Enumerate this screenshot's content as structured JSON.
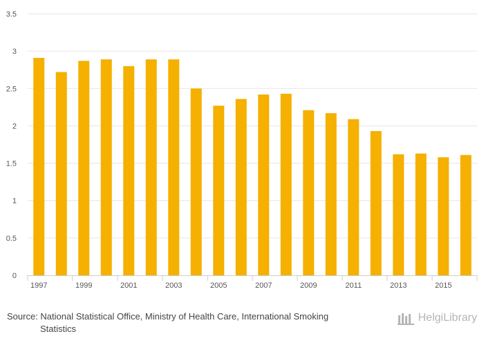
{
  "chart_data": {
    "type": "bar",
    "categories": [
      "1997",
      "1998",
      "1999",
      "2000",
      "2001",
      "2002",
      "2003",
      "2004",
      "2005",
      "2006",
      "2007",
      "2008",
      "2009",
      "2010",
      "2011",
      "2012",
      "2013",
      "2014",
      "2015",
      "2016"
    ],
    "x_tick_labels": [
      "1997",
      "1999",
      "2001",
      "2003",
      "2005",
      "2007",
      "2009",
      "2011",
      "2013",
      "2015"
    ],
    "values": [
      2.91,
      2.72,
      2.87,
      2.89,
      2.8,
      2.89,
      2.89,
      2.5,
      2.27,
      2.36,
      2.42,
      2.43,
      2.21,
      2.17,
      2.09,
      1.93,
      1.62,
      1.63,
      1.58,
      1.61
    ],
    "ylim": [
      0,
      3.5
    ],
    "y_ticks": [
      0,
      0.5,
      1,
      1.5,
      2,
      2.5,
      3,
      3.5
    ],
    "grid": true,
    "bar_color": "#f5b000",
    "title": "",
    "xlabel": "",
    "ylabel": ""
  },
  "source": {
    "line1": "Source: National Statistical Office, Ministry of Health Care, International Smoking",
    "line2": "Statistics"
  },
  "logo": {
    "text": "HelgiLibrary"
  }
}
